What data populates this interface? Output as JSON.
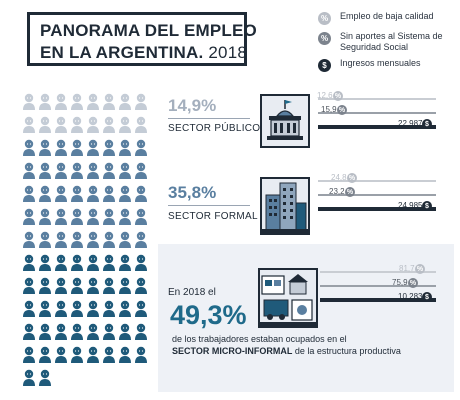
{
  "header": {
    "title_line1": "PANORAMA DEL EMPLEO",
    "title_line2_bold": "EN LA ARGENTINA.",
    "title_year": "2018"
  },
  "legend": [
    {
      "symbol": "%",
      "label": "Empleo de baja calidad",
      "color": "#b9bec6",
      "icon": "percent-icon"
    },
    {
      "symbol": "%",
      "label": "Sin aportes al Sistema de Seguridad Social",
      "color": "#7c838d",
      "icon": "percent-icon"
    },
    {
      "symbol": "$",
      "label": "Ingresos mensuales",
      "color": "#1f2a36",
      "icon": "dollar-icon"
    }
  ],
  "people": {
    "columns": 8,
    "rows": 13,
    "last_row_count": 2,
    "rows_public_light": 2,
    "row_formal_start": 2,
    "row_formal_end": 7,
    "colors": {
      "public": "#c4ccd6",
      "formal": "#5a7fa0",
      "micro": "#1f5a7a"
    }
  },
  "sections": {
    "public": {
      "pct": "14,9%",
      "label": "SECTOR PÚBLICO",
      "pct_color": "#a4afbd",
      "bars": [
        {
          "value": "12,6",
          "pct": 12.6,
          "kind": "low"
        },
        {
          "value": "15,9",
          "pct": 15.9,
          "kind": "noaport"
        },
        {
          "value": "22,987",
          "pct": 0,
          "kind": "income"
        }
      ]
    },
    "formal": {
      "pct": "35,8%",
      "label": "SECTOR FORMAL",
      "pct_color": "#5a7fa0",
      "bars": [
        {
          "value": "24,8",
          "pct": 24.8,
          "kind": "low"
        },
        {
          "value": "23,2",
          "pct": 23.2,
          "kind": "noaport"
        },
        {
          "value": "24,985",
          "pct": 0,
          "kind": "income"
        }
      ]
    },
    "micro": {
      "intro": "En 2018 el",
      "pct": "49,3%",
      "desc_line1": "de los trabajadores estaban ocupados en el",
      "desc_bold": "SECTOR MICRO-INFORMAL",
      "desc_rest": " de la estructura productiva",
      "bars": [
        {
          "value": "81,7",
          "pct": 81.7,
          "kind": "low"
        },
        {
          "value": "75,9",
          "pct": 75.9,
          "kind": "noaport"
        },
        {
          "value": "10,283",
          "pct": 0,
          "kind": "income"
        }
      ]
    }
  },
  "colors": {
    "low": "#c9cdd3",
    "noaport": "#9aa0a8",
    "income": "#1f2a36",
    "dark": "#1f2a36",
    "accent": "#1f6a8a"
  }
}
